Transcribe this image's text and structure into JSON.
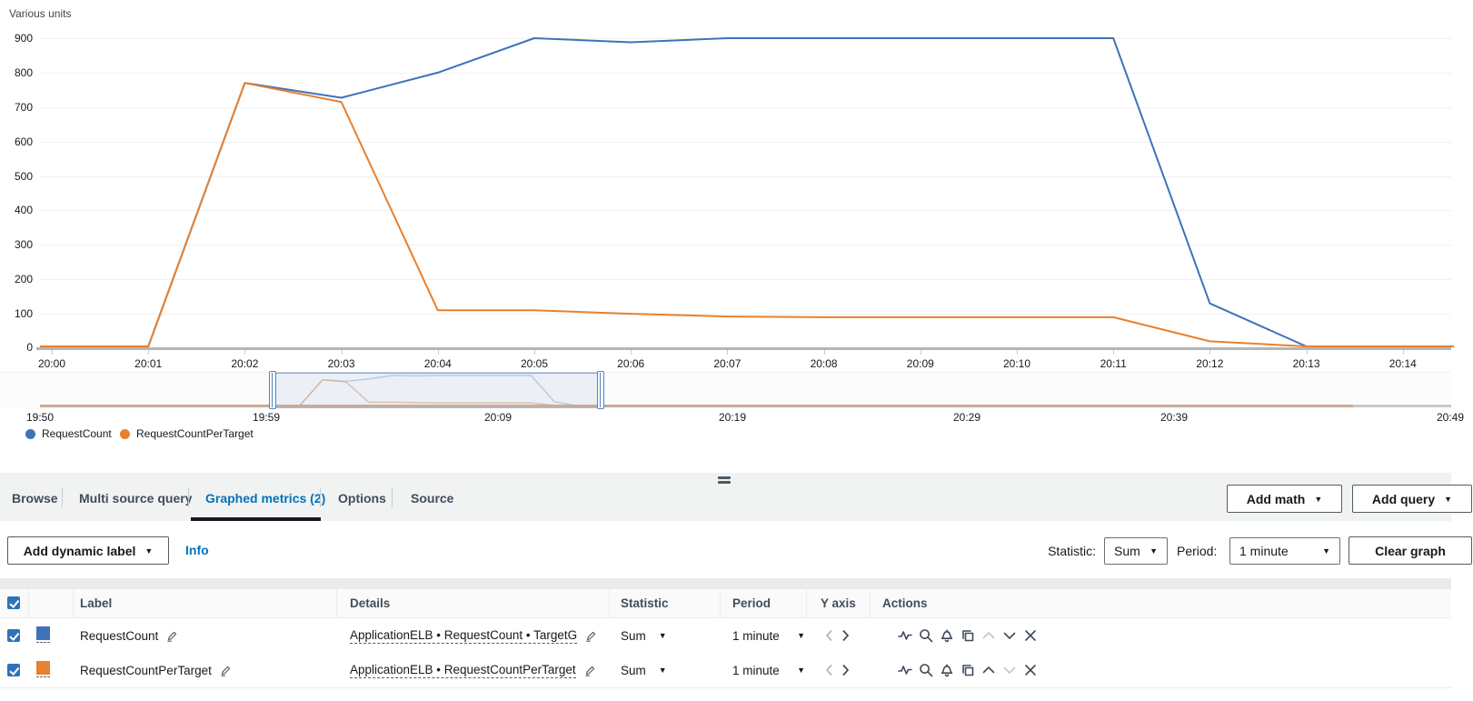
{
  "chart": {
    "unit_label": "Various units",
    "y_ticks": [
      900,
      800,
      700,
      600,
      500,
      400,
      300,
      200,
      100,
      0
    ]
  },
  "chart_data": {
    "type": "line",
    "title": "",
    "ylabel": "Various units",
    "ylim": [
      0,
      900
    ],
    "grid": true,
    "legend_position": "bottom-left",
    "x": [
      "20:00",
      "20:01",
      "20:02",
      "20:03",
      "20:04",
      "20:05",
      "20:06",
      "20:07",
      "20:08",
      "20:09",
      "20:10",
      "20:11",
      "20:12",
      "20:13",
      "20:14"
    ],
    "series": [
      {
        "name": "RequestCount",
        "color": "#3e73b8",
        "values": [
          0,
          0,
          770,
          727,
          800,
          900,
          888,
          900,
          900,
          900,
          900,
          900,
          130,
          0,
          0
        ]
      },
      {
        "name": "RequestCountPerTarget",
        "color": "#e8802d",
        "values": [
          0,
          0,
          770,
          715,
          110,
          110,
          100,
          92,
          90,
          90,
          90,
          90,
          20,
          4,
          4
        ]
      }
    ]
  },
  "timeline": {
    "labels": [
      "19:50",
      "19:59",
      "20:09",
      "20:19",
      "20:29",
      "20:39",
      "20:49"
    ],
    "selection": {
      "start": "20:00",
      "end": "20:14"
    }
  },
  "legend": {
    "items": [
      {
        "label": "RequestCount",
        "color": "#3e73b8"
      },
      {
        "label": "RequestCountPerTarget",
        "color": "#e8802d"
      }
    ]
  },
  "icons": {
    "caret_down": "▼"
  },
  "tabs": {
    "items": [
      {
        "label": "Browse",
        "active": false
      },
      {
        "label": "Multi source query",
        "active": false
      },
      {
        "label": "Graphed metrics (2)",
        "active": true
      },
      {
        "label": "Options",
        "active": false
      },
      {
        "label": "Source",
        "active": false
      }
    ]
  },
  "tab_actions": {
    "add_math": "Add math",
    "add_query": "Add query"
  },
  "controls": {
    "add_dynamic_label": "Add dynamic label",
    "info": "Info",
    "statistic_label": "Statistic:",
    "statistic_value": "Sum",
    "period_label": "Period:",
    "period_value": "1 minute",
    "clear_graph": "Clear graph"
  },
  "table": {
    "headers": {
      "label": "Label",
      "details": "Details",
      "statistic": "Statistic",
      "period": "Period",
      "y_axis": "Y axis",
      "actions": "Actions"
    },
    "rows": [
      {
        "checked": true,
        "label": "RequestCount",
        "details": "ApplicationELB • RequestCount • TargetG",
        "statistic": "Sum",
        "period": "1 minute"
      },
      {
        "checked": true,
        "label": "RequestCountPerTarget",
        "details": "ApplicationELB • RequestCountPerTarget",
        "statistic": "Sum",
        "period": "1 minute"
      }
    ]
  }
}
